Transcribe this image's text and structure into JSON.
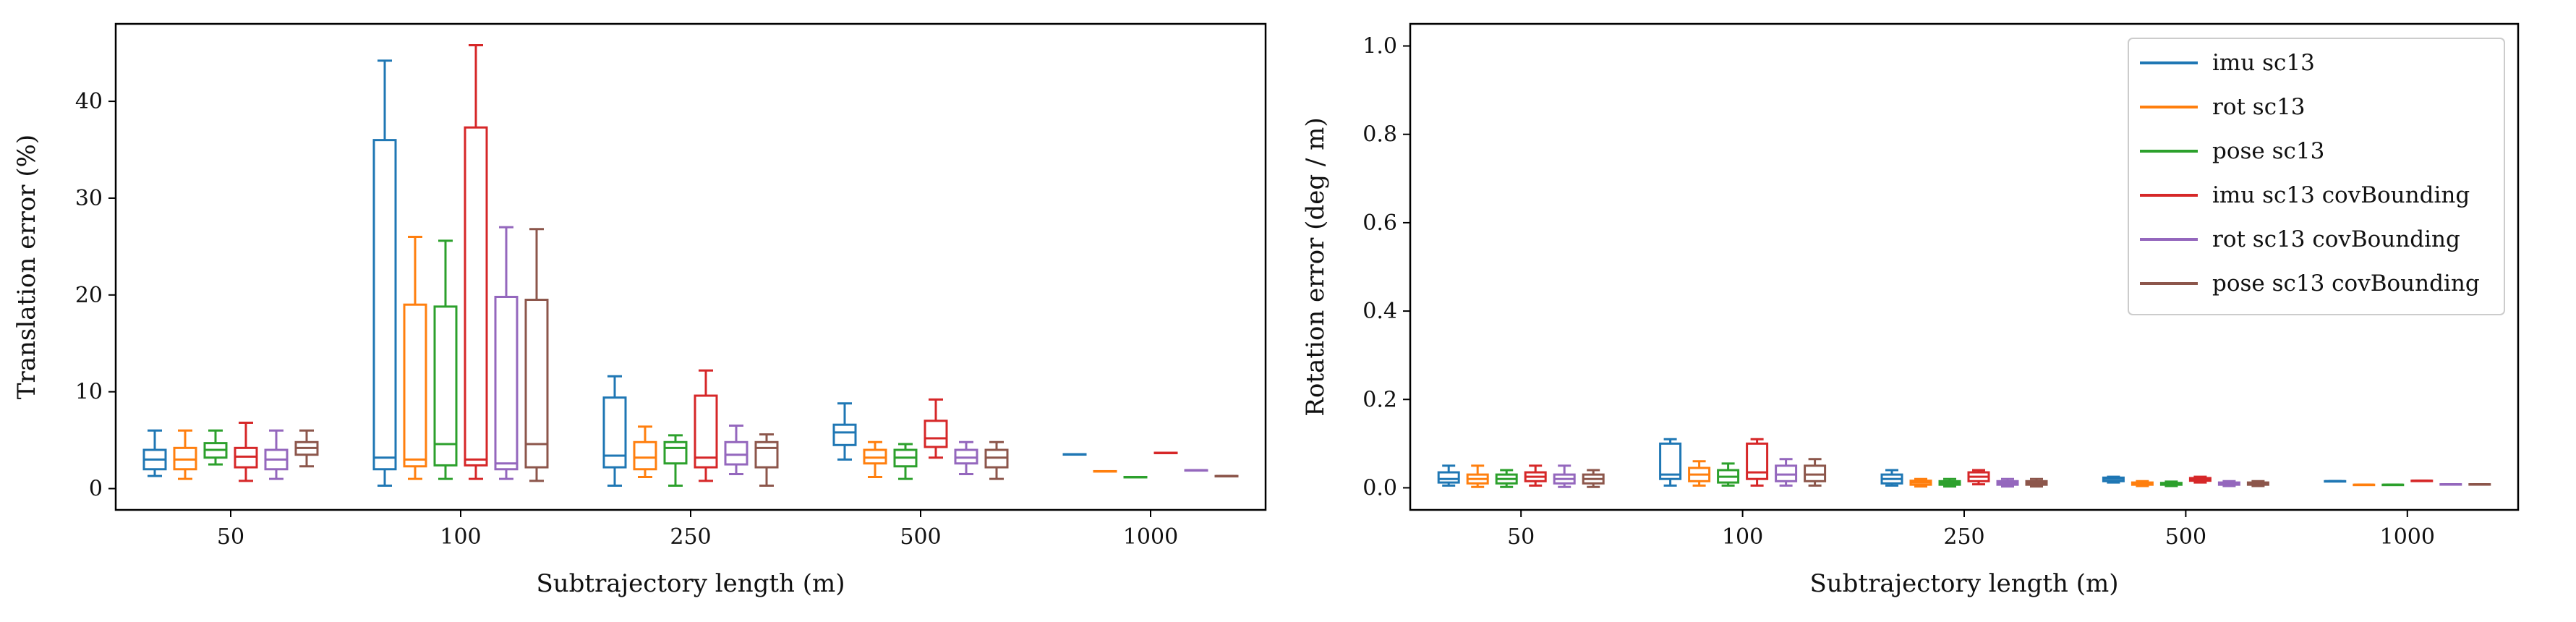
{
  "chart_data": [
    {
      "type": "box",
      "xlabel": "Subtrajectory length (m)",
      "ylabel": "Translation error (%)",
      "categories": [
        "50",
        "100",
        "250",
        "500",
        "1000"
      ],
      "ylim": [
        -2.2,
        48
      ],
      "yticks": [
        "0",
        "10",
        "20",
        "30",
        "40"
      ],
      "series": [
        {
          "name": "imu sc13",
          "color": "#1f77b4",
          "boxes": [
            {
              "min": 1.3,
              "q1": 2.0,
              "median": 3.0,
              "q3": 4.0,
              "max": 6.0
            },
            {
              "min": 0.3,
              "q1": 2.0,
              "median": 3.2,
              "q3": 36.0,
              "max": 44.2
            },
            {
              "min": 0.3,
              "q1": 2.2,
              "median": 3.4,
              "q3": 9.4,
              "max": 11.6
            },
            {
              "min": 3.0,
              "q1": 4.5,
              "median": 5.8,
              "q3": 6.6,
              "max": 8.8
            },
            {
              "min": 3.55,
              "q1": 3.55,
              "median": 3.55,
              "q3": 3.55,
              "max": 3.55
            }
          ]
        },
        {
          "name": "rot sc13",
          "color": "#ff7f0e",
          "boxes": [
            {
              "min": 1.0,
              "q1": 2.0,
              "median": 3.0,
              "q3": 4.2,
              "max": 6.0
            },
            {
              "min": 1.0,
              "q1": 2.3,
              "median": 3.0,
              "q3": 19.0,
              "max": 26.0
            },
            {
              "min": 1.2,
              "q1": 2.0,
              "median": 3.2,
              "q3": 4.8,
              "max": 6.4
            },
            {
              "min": 1.2,
              "q1": 2.6,
              "median": 3.2,
              "q3": 4.0,
              "max": 4.8
            },
            {
              "min": 1.8,
              "q1": 1.8,
              "median": 1.8,
              "q3": 1.8,
              "max": 1.8
            }
          ]
        },
        {
          "name": "pose sc13",
          "color": "#2ca02c",
          "boxes": [
            {
              "min": 2.5,
              "q1": 3.2,
              "median": 4.0,
              "q3": 4.7,
              "max": 6.0
            },
            {
              "min": 1.0,
              "q1": 2.4,
              "median": 4.6,
              "q3": 18.8,
              "max": 25.6
            },
            {
              "min": 0.3,
              "q1": 2.6,
              "median": 4.2,
              "q3": 4.8,
              "max": 5.5
            },
            {
              "min": 1.0,
              "q1": 2.3,
              "median": 3.2,
              "q3": 4.0,
              "max": 4.6
            },
            {
              "min": 1.2,
              "q1": 1.2,
              "median": 1.2,
              "q3": 1.2,
              "max": 1.2
            }
          ]
        },
        {
          "name": "imu sc13 covBounding",
          "color": "#d62728",
          "boxes": [
            {
              "min": 0.8,
              "q1": 2.2,
              "median": 3.3,
              "q3": 4.2,
              "max": 6.8
            },
            {
              "min": 1.0,
              "q1": 2.4,
              "median": 3.0,
              "q3": 37.3,
              "max": 45.8
            },
            {
              "min": 0.8,
              "q1": 2.2,
              "median": 3.2,
              "q3": 9.6,
              "max": 12.2
            },
            {
              "min": 3.2,
              "q1": 4.3,
              "median": 5.2,
              "q3": 7.0,
              "max": 9.2
            },
            {
              "min": 3.7,
              "q1": 3.7,
              "median": 3.7,
              "q3": 3.7,
              "max": 3.7
            }
          ]
        },
        {
          "name": "rot sc13 covBounding",
          "color": "#9467bd",
          "boxes": [
            {
              "min": 1.0,
              "q1": 2.0,
              "median": 3.0,
              "q3": 4.0,
              "max": 6.0
            },
            {
              "min": 1.0,
              "q1": 2.0,
              "median": 2.6,
              "q3": 19.8,
              "max": 27.0
            },
            {
              "min": 1.5,
              "q1": 2.5,
              "median": 3.5,
              "q3": 4.8,
              "max": 6.5
            },
            {
              "min": 1.5,
              "q1": 2.6,
              "median": 3.2,
              "q3": 4.0,
              "max": 4.8
            },
            {
              "min": 1.9,
              "q1": 1.9,
              "median": 1.9,
              "q3": 1.9,
              "max": 1.9
            }
          ]
        },
        {
          "name": "pose sc13 covBounding",
          "color": "#8c564b",
          "boxes": [
            {
              "min": 2.3,
              "q1": 3.5,
              "median": 4.2,
              "q3": 4.8,
              "max": 6.0
            },
            {
              "min": 0.8,
              "q1": 2.2,
              "median": 4.6,
              "q3": 19.5,
              "max": 26.8
            },
            {
              "min": 0.3,
              "q1": 2.2,
              "median": 4.2,
              "q3": 4.8,
              "max": 5.6
            },
            {
              "min": 1.0,
              "q1": 2.2,
              "median": 3.2,
              "q3": 4.0,
              "max": 4.8
            },
            {
              "min": 1.3,
              "q1": 1.3,
              "median": 1.3,
              "q3": 1.3,
              "max": 1.3
            }
          ]
        }
      ]
    },
    {
      "type": "box",
      "xlabel": "Subtrajectory length (m)",
      "ylabel": "Rotation error (deg / m)",
      "categories": [
        "50",
        "100",
        "250",
        "500",
        "1000"
      ],
      "ylim": [
        -0.05,
        1.05
      ],
      "yticks": [
        "0.0",
        "0.2",
        "0.4",
        "0.6",
        "0.8",
        "1.0"
      ],
      "legend": "top-right",
      "series": [
        {
          "name": "imu sc13",
          "color": "#1f77b4",
          "boxes": [
            {
              "min": 0.005,
              "q1": 0.012,
              "median": 0.02,
              "q3": 0.035,
              "max": 0.05
            },
            {
              "min": 0.005,
              "q1": 0.02,
              "median": 0.03,
              "q3": 0.1,
              "max": 0.11
            },
            {
              "min": 0.005,
              "q1": 0.01,
              "median": 0.02,
              "q3": 0.03,
              "max": 0.04
            },
            {
              "min": 0.012,
              "q1": 0.015,
              "median": 0.02,
              "q3": 0.023,
              "max": 0.025
            },
            {
              "min": 0.015,
              "q1": 0.015,
              "median": 0.015,
              "q3": 0.015,
              "max": 0.015
            }
          ]
        },
        {
          "name": "rot sc13",
          "color": "#ff7f0e",
          "boxes": [
            {
              "min": 0.002,
              "q1": 0.01,
              "median": 0.02,
              "q3": 0.03,
              "max": 0.05
            },
            {
              "min": 0.005,
              "q1": 0.015,
              "median": 0.03,
              "q3": 0.045,
              "max": 0.06
            },
            {
              "min": 0.003,
              "q1": 0.007,
              "median": 0.012,
              "q3": 0.016,
              "max": 0.02
            },
            {
              "min": 0.004,
              "q1": 0.007,
              "median": 0.01,
              "q3": 0.012,
              "max": 0.015
            },
            {
              "min": 0.007,
              "q1": 0.007,
              "median": 0.007,
              "q3": 0.007,
              "max": 0.007
            }
          ]
        },
        {
          "name": "pose sc13",
          "color": "#2ca02c",
          "boxes": [
            {
              "min": 0.002,
              "q1": 0.01,
              "median": 0.02,
              "q3": 0.03,
              "max": 0.04
            },
            {
              "min": 0.005,
              "q1": 0.012,
              "median": 0.025,
              "q3": 0.04,
              "max": 0.055
            },
            {
              "min": 0.003,
              "q1": 0.007,
              "median": 0.011,
              "q3": 0.015,
              "max": 0.02
            },
            {
              "min": 0.004,
              "q1": 0.007,
              "median": 0.009,
              "q3": 0.011,
              "max": 0.014
            },
            {
              "min": 0.007,
              "q1": 0.007,
              "median": 0.007,
              "q3": 0.007,
              "max": 0.007
            }
          ]
        },
        {
          "name": "imu sc13 covBounding",
          "color": "#d62728",
          "boxes": [
            {
              "min": 0.005,
              "q1": 0.015,
              "median": 0.025,
              "q3": 0.035,
              "max": 0.05
            },
            {
              "min": 0.005,
              "q1": 0.02,
              "median": 0.035,
              "q3": 0.1,
              "max": 0.11
            },
            {
              "min": 0.008,
              "q1": 0.015,
              "median": 0.025,
              "q3": 0.035,
              "max": 0.04
            },
            {
              "min": 0.012,
              "q1": 0.016,
              "median": 0.02,
              "q3": 0.022,
              "max": 0.025
            },
            {
              "min": 0.016,
              "q1": 0.016,
              "median": 0.016,
              "q3": 0.016,
              "max": 0.016
            }
          ]
        },
        {
          "name": "rot sc13 covBounding",
          "color": "#9467bd",
          "boxes": [
            {
              "min": 0.002,
              "q1": 0.01,
              "median": 0.02,
              "q3": 0.03,
              "max": 0.05
            },
            {
              "min": 0.005,
              "q1": 0.015,
              "median": 0.03,
              "q3": 0.05,
              "max": 0.065
            },
            {
              "min": 0.003,
              "q1": 0.007,
              "median": 0.011,
              "q3": 0.015,
              "max": 0.02
            },
            {
              "min": 0.004,
              "q1": 0.007,
              "median": 0.01,
              "q3": 0.012,
              "max": 0.015
            },
            {
              "min": 0.008,
              "q1": 0.008,
              "median": 0.008,
              "q3": 0.008,
              "max": 0.008
            }
          ]
        },
        {
          "name": "pose sc13 covBounding",
          "color": "#8c564b",
          "boxes": [
            {
              "min": 0.002,
              "q1": 0.01,
              "median": 0.02,
              "q3": 0.03,
              "max": 0.04
            },
            {
              "min": 0.005,
              "q1": 0.015,
              "median": 0.03,
              "q3": 0.05,
              "max": 0.065
            },
            {
              "min": 0.003,
              "q1": 0.007,
              "median": 0.011,
              "q3": 0.015,
              "max": 0.02
            },
            {
              "min": 0.004,
              "q1": 0.007,
              "median": 0.01,
              "q3": 0.012,
              "max": 0.015
            },
            {
              "min": 0.008,
              "q1": 0.008,
              "median": 0.008,
              "q3": 0.008,
              "max": 0.008
            }
          ]
        }
      ]
    }
  ]
}
